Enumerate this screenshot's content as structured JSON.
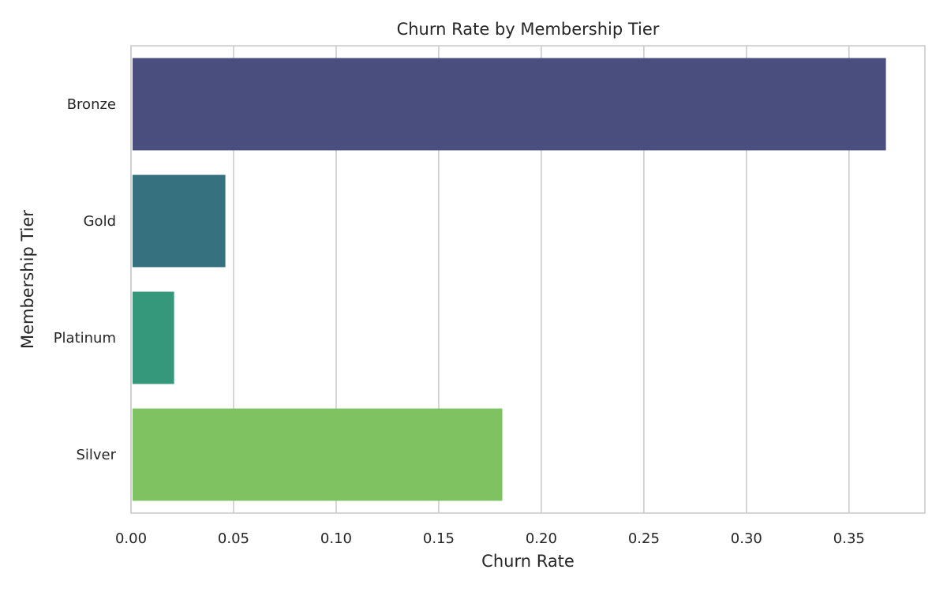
{
  "chart_data": {
    "type": "bar",
    "orientation": "horizontal",
    "title": "Churn Rate by Membership Tier",
    "xlabel": "Churn Rate",
    "ylabel": "Membership Tier",
    "categories": [
      "Bronze",
      "Gold",
      "Platinum",
      "Silver"
    ],
    "values": [
      0.368,
      0.046,
      0.021,
      0.181
    ],
    "colors": [
      "#4a4e7e",
      "#35717e",
      "#35987b",
      "#7fc262"
    ],
    "xlim": [
      0,
      0.387
    ],
    "xticks": [
      0.0,
      0.05,
      0.1,
      0.15,
      0.2,
      0.25,
      0.3,
      0.35
    ],
    "xtick_labels": [
      "0.00",
      "0.05",
      "0.10",
      "0.15",
      "0.20",
      "0.25",
      "0.30",
      "0.35"
    ],
    "grid": "vertical",
    "legend": "none"
  }
}
